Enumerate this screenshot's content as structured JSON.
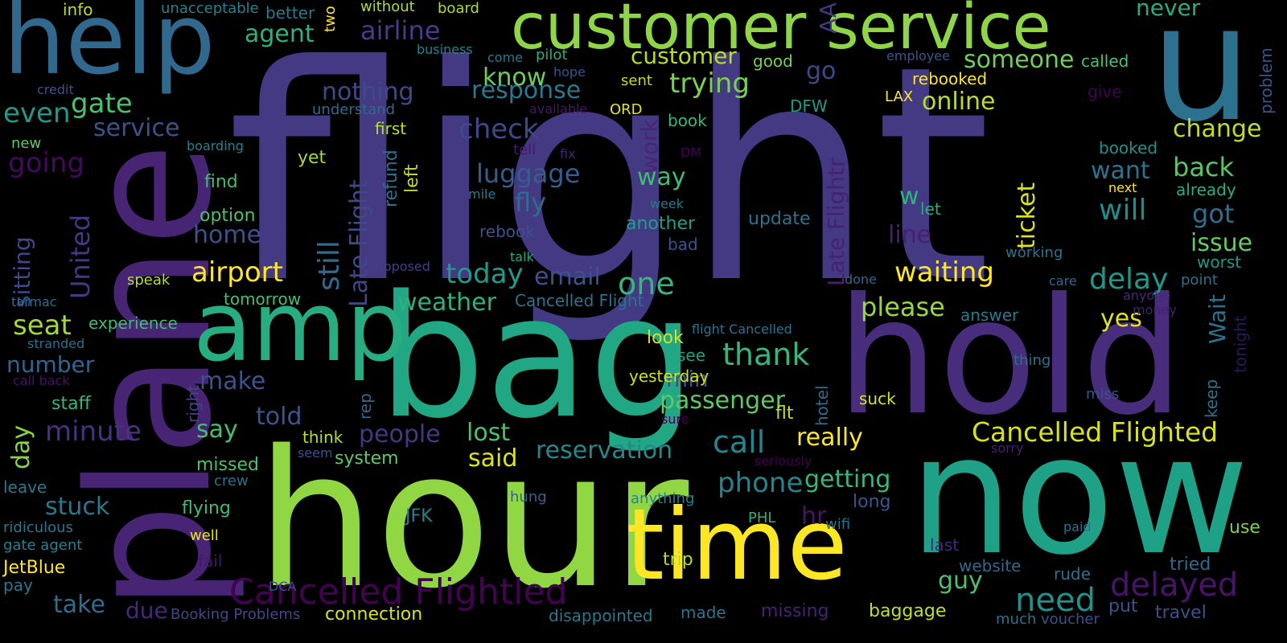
{
  "words": [
    {
      "text": "flight",
      "color": "#443983"
    },
    {
      "text": "hour",
      "color": "#90d743"
    },
    {
      "text": "bag",
      "color": "#22a785"
    },
    {
      "text": "now",
      "color": "#1fa187"
    },
    {
      "text": "hold",
      "color": "#472d7b"
    },
    {
      "text": "plane",
      "color": "#482475"
    },
    {
      "text": "u",
      "color": "#2c728e"
    },
    {
      "text": "time",
      "color": "#fde725"
    },
    {
      "text": "help",
      "color": "#31688e"
    },
    {
      "text": "amp",
      "color": "#27ad81"
    },
    {
      "text": "customer service",
      "color": "#8ed645"
    },
    {
      "text": "Cancelled Flightled",
      "color": "#440154"
    },
    {
      "text": "Cancelled Flighted",
      "color": "#d8e219"
    },
    {
      "text": "delayed",
      "color": "#481467"
    },
    {
      "text": "need",
      "color": "#20928c"
    },
    {
      "text": "thank",
      "color": "#35b779"
    },
    {
      "text": "call",
      "color": "#25858e"
    },
    {
      "text": "airline",
      "color": "#433e85"
    },
    {
      "text": "customer",
      "color": "#b5de2b"
    },
    {
      "text": "waiting",
      "color": "#fde725"
    },
    {
      "text": "trying",
      "color": "#7ad151"
    },
    {
      "text": "gate",
      "color": "#4ac16d"
    },
    {
      "text": "going",
      "color": "#46085c"
    },
    {
      "text": "agent",
      "color": "#2db27d"
    },
    {
      "text": "service",
      "color": "#3b528b"
    },
    {
      "text": "even",
      "color": "#1f9a8a"
    },
    {
      "text": "check",
      "color": "#3e4989"
    },
    {
      "text": "nothing",
      "color": "#3e4a89"
    },
    {
      "text": "response",
      "color": "#2a788e"
    },
    {
      "text": "know",
      "color": "#6ece58"
    },
    {
      "text": "luggage",
      "color": "#365d8d"
    },
    {
      "text": "fly",
      "color": "#2f6c8e"
    },
    {
      "text": "online",
      "color": "#b8de29"
    },
    {
      "text": "change",
      "color": "#bddf26"
    },
    {
      "text": "someone",
      "color": "#70cf57"
    },
    {
      "text": "back",
      "color": "#56c667"
    },
    {
      "text": "want",
      "color": "#2c738e"
    },
    {
      "text": "will",
      "color": "#228b8d"
    },
    {
      "text": "got",
      "color": "#2e6e8e"
    },
    {
      "text": "issue",
      "color": "#63cb5f"
    },
    {
      "text": "delay",
      "color": "#1f988b"
    },
    {
      "text": "yes",
      "color": "#e2e418"
    },
    {
      "text": "please",
      "color": "#95d840"
    },
    {
      "text": "one",
      "color": "#35b779"
    },
    {
      "text": "today",
      "color": "#1e9b8a"
    },
    {
      "text": "email",
      "color": "#3b528b"
    },
    {
      "text": "weather",
      "color": "#2db27d"
    },
    {
      "text": "airport",
      "color": "#fde725"
    },
    {
      "text": "home",
      "color": "#3b528b"
    },
    {
      "text": "seat",
      "color": "#a0da39"
    },
    {
      "text": "number",
      "color": "#31668e"
    },
    {
      "text": "make",
      "color": "#3b528b"
    },
    {
      "text": "told",
      "color": "#39558c"
    },
    {
      "text": "minute",
      "color": "#46327e"
    },
    {
      "text": "say",
      "color": "#44bf70"
    },
    {
      "text": "stuck",
      "color": "#2a788e"
    },
    {
      "text": "people",
      "color": "#453781"
    },
    {
      "text": "lost",
      "color": "#4ac16d"
    },
    {
      "text": "said",
      "color": "#dde318"
    },
    {
      "text": "passenger",
      "color": "#5ec962"
    },
    {
      "text": "reservation",
      "color": "#23898e"
    },
    {
      "text": "really",
      "color": "#fde725"
    },
    {
      "text": "phone",
      "color": "#26828e"
    },
    {
      "text": "getting",
      "color": "#35b779"
    },
    {
      "text": "guy",
      "color": "#4ac16d"
    },
    {
      "text": "take",
      "color": "#2f6c8e"
    },
    {
      "text": "due",
      "color": "#482878"
    },
    {
      "text": "way",
      "color": "#3dbc74"
    },
    {
      "text": "min",
      "color": "#3b528b"
    },
    {
      "text": "go",
      "color": "#3e4989"
    },
    {
      "text": "still",
      "color": "#306a8e"
    },
    {
      "text": "Late Flight",
      "color": "#3e4989"
    },
    {
      "text": "Late Flightr",
      "color": "#482071"
    },
    {
      "text": "ticket",
      "color": "#dde318"
    },
    {
      "text": "United",
      "color": "#443983"
    },
    {
      "text": "sitting",
      "color": "#3e4989"
    },
    {
      "text": "day",
      "color": "#86d549"
    },
    {
      "text": "work",
      "color": "#482576"
    },
    {
      "text": "refund",
      "color": "#2d708e"
    },
    {
      "text": "left",
      "color": "#b5de2b"
    },
    {
      "text": "AA",
      "color": "#453781"
    },
    {
      "text": "hr",
      "color": "#481467"
    },
    {
      "text": "line",
      "color": "#481f70"
    },
    {
      "text": "w",
      "color": "#2fb47c"
    },
    {
      "text": "Wait",
      "color": "#2c728e"
    },
    {
      "text": "tonight",
      "color": "#2a1858"
    },
    {
      "text": "hotel",
      "color": "#2f6c8e"
    },
    {
      "text": "keep",
      "color": "#2c728e"
    },
    {
      "text": "problem",
      "color": "#3b528b"
    },
    {
      "text": "right",
      "color": "#414487"
    },
    {
      "text": "rep",
      "color": "#31688e"
    },
    {
      "text": "info",
      "color": "#b8de29"
    },
    {
      "text": "unacceptable",
      "color": "#26828e"
    },
    {
      "text": "better",
      "color": "#29798e"
    },
    {
      "text": "two",
      "color": "#fde725"
    },
    {
      "text": "without",
      "color": "#a8db34"
    },
    {
      "text": "board",
      "color": "#aadc32"
    },
    {
      "text": "never",
      "color": "#27ad81"
    },
    {
      "text": "business",
      "color": "#26828e"
    },
    {
      "text": "come",
      "color": "#2a788e"
    },
    {
      "text": "pilot",
      "color": "#27ad81"
    },
    {
      "text": "hope",
      "color": "#3b528b"
    },
    {
      "text": "good",
      "color": "#7ad151"
    },
    {
      "text": "employee",
      "color": "#39568c"
    },
    {
      "text": "called",
      "color": "#4ac16d"
    },
    {
      "text": "credit",
      "color": "#3b528b"
    },
    {
      "text": "understand",
      "color": "#31688e"
    },
    {
      "text": "available",
      "color": "#481668"
    },
    {
      "text": "ORD",
      "color": "#e5e419"
    },
    {
      "text": "DFW",
      "color": "#1f988b"
    },
    {
      "text": "LAX",
      "color": "#fde725"
    },
    {
      "text": "rebooked",
      "color": "#fde725"
    },
    {
      "text": "give",
      "color": "#440154"
    },
    {
      "text": "sent",
      "color": "#c2df23"
    },
    {
      "text": "first",
      "color": "#b5de2b"
    },
    {
      "text": "book",
      "color": "#35b779"
    },
    {
      "text": "new",
      "color": "#5ec962"
    },
    {
      "text": "boarding",
      "color": "#277f8e"
    },
    {
      "text": "tell",
      "color": "#481769"
    },
    {
      "text": "fix",
      "color": "#482475"
    },
    {
      "text": "DM",
      "color": "#440154"
    },
    {
      "text": "booked",
      "color": "#21918c"
    },
    {
      "text": "next",
      "color": "#fde725"
    },
    {
      "text": "already",
      "color": "#29af7f"
    },
    {
      "text": "find",
      "color": "#3fbc73"
    },
    {
      "text": "yet",
      "color": "#9fda3a"
    },
    {
      "text": "mile",
      "color": "#29798e"
    },
    {
      "text": "week",
      "color": "#2a788e"
    },
    {
      "text": "let",
      "color": "#29af7f"
    },
    {
      "text": "option",
      "color": "#4ac16d"
    },
    {
      "text": "update",
      "color": "#2c728e"
    },
    {
      "text": "another",
      "color": "#1f9e89"
    },
    {
      "text": "rebook",
      "color": "#3b528b"
    },
    {
      "text": "bad",
      "color": "#3b528b"
    },
    {
      "text": "working",
      "color": "#2c728e"
    },
    {
      "text": "worst",
      "color": "#1f988b"
    },
    {
      "text": "talk",
      "color": "#22a884"
    },
    {
      "text": "supposed",
      "color": "#433e85"
    },
    {
      "text": "speak",
      "color": "#b5de2b"
    },
    {
      "text": "done",
      "color": "#31688e"
    },
    {
      "text": "care",
      "color": "#31688e"
    },
    {
      "text": "point",
      "color": "#2d708e"
    },
    {
      "text": "anyone",
      "color": "#482878"
    },
    {
      "text": "tarmac",
      "color": "#2e6e8e"
    },
    {
      "text": "tomorrow",
      "color": "#44bf70"
    },
    {
      "text": "Cancelled Flight",
      "color": "#2c728e"
    },
    {
      "text": "money",
      "color": "#481f70"
    },
    {
      "text": "experience",
      "color": "#3fbc73"
    },
    {
      "text": "look",
      "color": "#d8e219"
    },
    {
      "text": "flight Cancelled",
      "color": "#2c728e"
    },
    {
      "text": "answer",
      "color": "#2a788e"
    },
    {
      "text": "stranded",
      "color": "#2d708e"
    },
    {
      "text": "see",
      "color": "#1fa187"
    },
    {
      "text": "thing",
      "color": "#2d708e"
    },
    {
      "text": "call back",
      "color": "#471164"
    },
    {
      "text": "yesterday",
      "color": "#d0e11c"
    },
    {
      "text": "staff",
      "color": "#35b779"
    },
    {
      "text": "suck",
      "color": "#d8e219"
    },
    {
      "text": "miss",
      "color": "#3b528b"
    },
    {
      "text": "sure",
      "color": "#440154"
    },
    {
      "text": "flt",
      "color": "#bddf26"
    },
    {
      "text": "think",
      "color": "#b5de2b"
    },
    {
      "text": "seem",
      "color": "#3b528b"
    },
    {
      "text": "system",
      "color": "#5ec962"
    },
    {
      "text": "missed",
      "color": "#4ac16d"
    },
    {
      "text": "seriously",
      "color": "#440154"
    },
    {
      "text": "sorry",
      "color": "#481f70"
    },
    {
      "text": "crew",
      "color": "#2d708e"
    },
    {
      "text": "leave",
      "color": "#29798e"
    },
    {
      "text": "flying",
      "color": "#3dbc74"
    },
    {
      "text": "hung",
      "color": "#33638d"
    },
    {
      "text": "anything",
      "color": "#25858e"
    },
    {
      "text": "long",
      "color": "#39558c"
    },
    {
      "text": "ridiculous",
      "color": "#2a788e"
    },
    {
      "text": "gate agent",
      "color": "#26828e"
    },
    {
      "text": "JFK",
      "color": "#26828e"
    },
    {
      "text": "PHL",
      "color": "#2db27d"
    },
    {
      "text": "wifi",
      "color": "#2c728e"
    },
    {
      "text": "paid",
      "color": "#2c728e"
    },
    {
      "text": "use",
      "color": "#7ad151"
    },
    {
      "text": "well",
      "color": "#e5e419"
    },
    {
      "text": "fail",
      "color": "#481668"
    },
    {
      "text": "last",
      "color": "#482878"
    },
    {
      "text": "trip",
      "color": "#b5de2b"
    },
    {
      "text": "JetBlue",
      "color": "#fde725"
    },
    {
      "text": "website",
      "color": "#31688e"
    },
    {
      "text": "tried",
      "color": "#31688e"
    },
    {
      "text": "DCA",
      "color": "#3b528b"
    },
    {
      "text": "rude",
      "color": "#2c728e"
    },
    {
      "text": "pay",
      "color": "#2a788e"
    },
    {
      "text": "Booking Problems",
      "color": "#3e4989"
    },
    {
      "text": "connection",
      "color": "#d8e219"
    },
    {
      "text": "disappointed",
      "color": "#2a788e"
    },
    {
      "text": "made",
      "color": "#2c728e"
    },
    {
      "text": "missing",
      "color": "#482173"
    },
    {
      "text": "baggage",
      "color": "#c2df23"
    },
    {
      "text": "put",
      "color": "#3b528b"
    },
    {
      "text": "much",
      "color": "#2c728e"
    },
    {
      "text": "voucher",
      "color": "#3b528b"
    },
    {
      "text": "travel",
      "color": "#3b528b"
    }
  ]
}
